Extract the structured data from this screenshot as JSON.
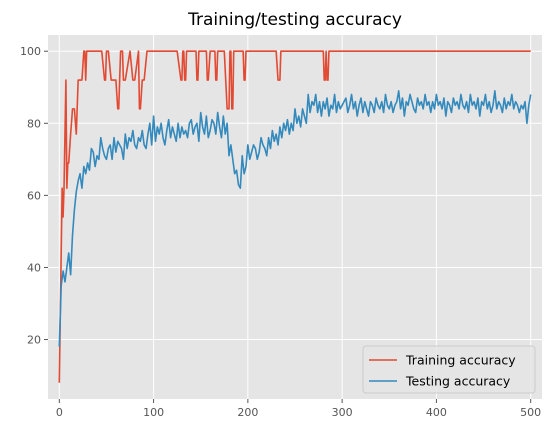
{
  "chart_data": {
    "type": "line",
    "title": "Training/testing accuracy",
    "xlabel": "",
    "ylabel": "",
    "xlim": [
      -12,
      512
    ],
    "ylim": [
      3.5,
      104.5
    ],
    "xticks": [
      0,
      100,
      200,
      300,
      400,
      500
    ],
    "yticks": [
      20,
      40,
      60,
      80,
      100
    ],
    "grid": true,
    "legend_position": "lower-right",
    "series": [
      {
        "name": "Training accuracy",
        "color": "#E24A33",
        "x": [
          0,
          2,
          3,
          4,
          5,
          6,
          7,
          8,
          9,
          10,
          12,
          14,
          16,
          18,
          20,
          22,
          24,
          26,
          27,
          28,
          29,
          30,
          31,
          32,
          35,
          38,
          40,
          45,
          48,
          49,
          50,
          52,
          55,
          58,
          59,
          60,
          62,
          63,
          64,
          65,
          66,
          67,
          68,
          70,
          75,
          78,
          79,
          80,
          84,
          85,
          86,
          88,
          89,
          90,
          93,
          94,
          95,
          100,
          105,
          110,
          115,
          120,
          125,
          129,
          130,
          131,
          132,
          133,
          134,
          135,
          136,
          140,
          145,
          146,
          147,
          148,
          150,
          155,
          156,
          157,
          158,
          160,
          165,
          166,
          167,
          168,
          170,
          175,
          178,
          179,
          180,
          181,
          182,
          183,
          184,
          185,
          186,
          190,
          195,
          196,
          197,
          198,
          200,
          205,
          210,
          215,
          220,
          225,
          230,
          232,
          233,
          234,
          235,
          236,
          240,
          250,
          260,
          270,
          280,
          281,
          282,
          283,
          284,
          285,
          286,
          290,
          300,
          350,
          400,
          450,
          500
        ],
        "y": [
          8,
          44,
          62,
          54,
          62,
          77,
          92,
          62,
          69,
          69,
          77,
          84,
          84,
          77,
          92,
          92,
          92,
          100,
          100,
          92,
          100,
          100,
          100,
          100,
          100,
          100,
          100,
          100,
          92,
          92,
          100,
          100,
          92,
          92,
          92,
          92,
          84,
          84,
          92,
          100,
          100,
          100,
          92,
          92,
          100,
          92,
          92,
          92,
          100,
          84,
          84,
          92,
          92,
          92,
          100,
          100,
          100,
          100,
          100,
          100,
          100,
          100,
          100,
          92,
          92,
          100,
          100,
          92,
          92,
          100,
          100,
          100,
          100,
          92,
          92,
          100,
          100,
          100,
          100,
          92,
          92,
          100,
          100,
          92,
          92,
          100,
          100,
          100,
          84,
          84,
          84,
          100,
          100,
          84,
          84,
          100,
          100,
          100,
          100,
          92,
          92,
          100,
          100,
          100,
          100,
          100,
          100,
          100,
          100,
          92,
          92,
          92,
          100,
          100,
          100,
          100,
          100,
          100,
          100,
          92,
          92,
          100,
          92,
          92,
          100,
          100,
          100,
          100,
          100,
          100,
          100
        ]
      },
      {
        "name": "Testing accuracy",
        "color": "#348ABD",
        "x": [
          0,
          2,
          4,
          6,
          8,
          10,
          12,
          14,
          16,
          18,
          20,
          22,
          24,
          26,
          28,
          30,
          32,
          34,
          36,
          38,
          40,
          42,
          44,
          46,
          48,
          50,
          52,
          54,
          56,
          58,
          60,
          62,
          64,
          66,
          68,
          70,
          72,
          74,
          76,
          78,
          80,
          82,
          84,
          86,
          88,
          90,
          92,
          94,
          96,
          98,
          100,
          102,
          104,
          106,
          108,
          110,
          112,
          114,
          116,
          118,
          120,
          122,
          124,
          126,
          128,
          130,
          132,
          134,
          136,
          138,
          140,
          142,
          144,
          146,
          148,
          150,
          152,
          154,
          156,
          158,
          160,
          162,
          164,
          166,
          168,
          170,
          172,
          174,
          176,
          178,
          180,
          182,
          184,
          186,
          188,
          190,
          192,
          194,
          196,
          198,
          200,
          202,
          204,
          206,
          208,
          210,
          212,
          214,
          216,
          218,
          220,
          222,
          224,
          226,
          228,
          230,
          232,
          234,
          236,
          238,
          240,
          242,
          244,
          246,
          248,
          250,
          252,
          254,
          256,
          258,
          260,
          262,
          264,
          266,
          268,
          270,
          272,
          274,
          276,
          278,
          280,
          282,
          284,
          286,
          288,
          290,
          292,
          294,
          296,
          298,
          300,
          302,
          304,
          306,
          308,
          310,
          312,
          314,
          316,
          318,
          320,
          322,
          324,
          326,
          328,
          330,
          332,
          334,
          336,
          338,
          340,
          342,
          344,
          346,
          348,
          350,
          352,
          354,
          356,
          358,
          360,
          362,
          364,
          366,
          368,
          370,
          372,
          374,
          376,
          378,
          380,
          382,
          384,
          386,
          388,
          390,
          392,
          394,
          396,
          398,
          400,
          402,
          404,
          406,
          408,
          410,
          412,
          414,
          416,
          418,
          420,
          422,
          424,
          426,
          428,
          430,
          432,
          434,
          436,
          438,
          440,
          442,
          444,
          446,
          448,
          450,
          452,
          454,
          456,
          458,
          460,
          462,
          464,
          466,
          468,
          470,
          472,
          474,
          476,
          478,
          480,
          482,
          484,
          486,
          488,
          490,
          492,
          494,
          496,
          498,
          500
        ],
        "y": [
          18,
          35,
          39,
          36,
          40,
          44,
          38,
          49,
          56,
          61,
          64,
          66,
          62,
          68,
          66,
          69,
          67,
          73,
          72,
          68,
          71,
          70,
          76,
          73,
          71,
          70,
          73,
          74,
          70,
          76,
          72,
          75,
          74,
          73,
          70,
          77,
          73,
          76,
          75,
          78,
          74,
          73,
          76,
          75,
          78,
          74,
          73,
          77,
          80,
          74,
          82,
          75,
          79,
          77,
          80,
          76,
          74,
          78,
          81,
          76,
          79,
          77,
          75,
          80,
          76,
          79,
          77,
          78,
          76,
          80,
          81,
          77,
          79,
          80,
          75,
          83,
          79,
          77,
          82,
          76,
          78,
          81,
          80,
          77,
          83,
          79,
          76,
          82,
          77,
          80,
          71,
          74,
          70,
          66,
          67,
          63,
          62,
          71,
          66,
          68,
          74,
          70,
          72,
          74,
          73,
          70,
          72,
          76,
          74,
          73,
          71,
          76,
          73,
          78,
          75,
          77,
          74,
          79,
          76,
          80,
          78,
          81,
          77,
          80,
          78,
          84,
          80,
          82,
          79,
          84,
          82,
          80,
          88,
          83,
          86,
          85,
          88,
          83,
          86,
          82,
          86,
          84,
          87,
          82,
          85,
          84,
          88,
          83,
          86,
          84,
          85,
          86,
          87,
          83,
          85,
          88,
          84,
          86,
          82,
          85,
          87,
          83,
          86,
          84,
          82,
          86,
          85,
          83,
          87,
          85,
          84,
          86,
          83,
          88,
          85,
          84,
          86,
          83,
          85,
          86,
          89,
          84,
          87,
          82,
          86,
          85,
          88,
          86,
          84,
          83,
          87,
          85,
          86,
          84,
          88,
          85,
          86,
          83,
          86,
          84,
          88,
          85,
          86,
          84,
          87,
          82,
          86,
          85,
          83,
          87,
          85,
          86,
          84,
          88,
          85,
          84,
          86,
          83,
          88,
          85,
          86,
          84,
          87,
          82,
          86,
          85,
          88,
          84,
          86,
          83,
          85,
          89,
          84,
          86,
          85,
          83,
          87,
          84,
          86,
          85,
          88,
          84,
          86,
          85,
          83,
          85,
          84,
          86,
          80,
          85,
          88
        ]
      }
    ]
  }
}
